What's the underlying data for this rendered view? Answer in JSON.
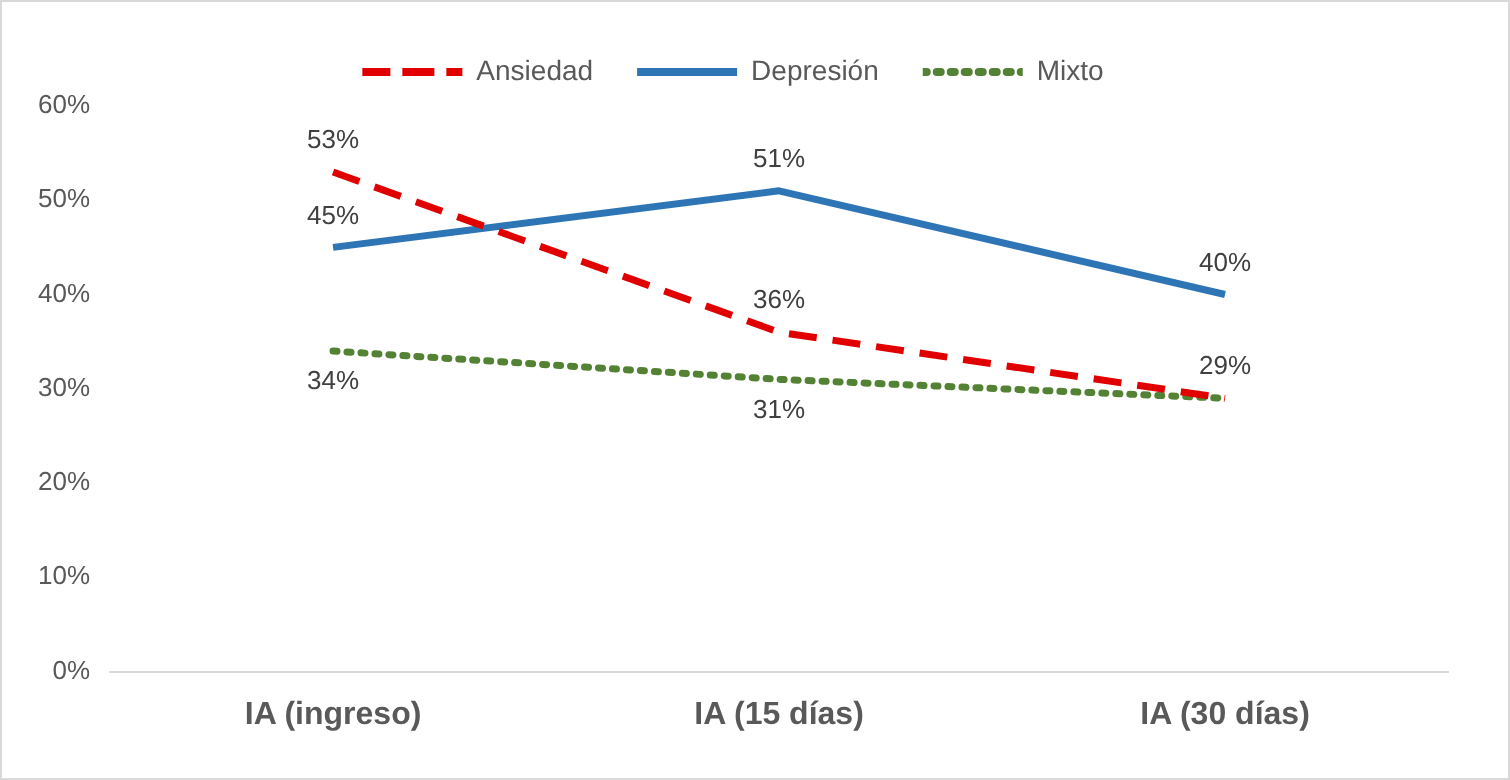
{
  "chart_data": {
    "type": "line",
    "categories": [
      "IA (ingreso)",
      "IA (15 días)",
      "IA (30 días)"
    ],
    "series": [
      {
        "name": "Ansiedad",
        "color": "#e00000",
        "line_style": "dashed",
        "values": [
          53,
          36,
          29
        ],
        "value_labels": [
          "53%",
          "36%",
          "29%"
        ]
      },
      {
        "name": "Depresión",
        "color": "#2e75b6",
        "line_style": "solid",
        "values": [
          45,
          51,
          40
        ],
        "value_labels": [
          "45%",
          "51%",
          "40%"
        ]
      },
      {
        "name": "Mixto",
        "color": "#548235",
        "line_style": "dotted",
        "values": [
          34,
          31,
          29
        ],
        "value_labels": [
          "34%",
          "31%",
          null
        ]
      }
    ],
    "ylim": [
      0,
      60
    ],
    "yticks": [
      {
        "value": 0,
        "label": "0%"
      },
      {
        "value": 10,
        "label": "10%"
      },
      {
        "value": 20,
        "label": "20%"
      },
      {
        "value": 30,
        "label": "30%"
      },
      {
        "value": 40,
        "label": "40%"
      },
      {
        "value": 50,
        "label": "50%"
      },
      {
        "value": 60,
        "label": "60%"
      }
    ],
    "grid": false,
    "legend": "top",
    "marker": "none"
  }
}
